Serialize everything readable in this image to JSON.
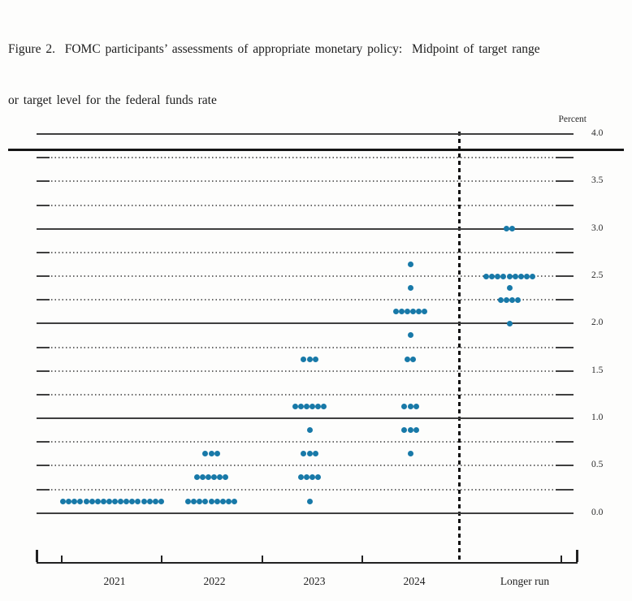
{
  "title": {
    "line1": "Figure 2.  FOMC participants’ assessments of appropriate monetary policy:  Midpoint of target range",
    "line2": "or target level for the federal funds rate"
  },
  "chart_data": {
    "type": "scatter",
    "subtype": "fomc-dot-plot",
    "title": "Figure 2. FOMC participants’ assessments of appropriate monetary policy: Midpoint of target range or target level for the federal funds rate",
    "xlabel": "",
    "ylabel": "Percent",
    "ylim": [
      0.0,
      4.0
    ],
    "grid_interval": 0.25,
    "gridline_style": "solid at integers, dotted at quarter points, short end ticks",
    "legend": "none",
    "yticks": [
      "4.0",
      "3.5",
      "3.0",
      "2.5",
      "2.0",
      "1.5",
      "1.0",
      "0.5",
      "0.0"
    ],
    "categories": [
      "2021",
      "2022",
      "2023",
      "2024",
      "Longer run"
    ],
    "separator": "dashed vertical line between 2024 and Longer run",
    "dot_color": "#1879a8",
    "series": [
      {
        "name": "2021",
        "dots": [
          {
            "rate": 0.125,
            "count": 18
          }
        ]
      },
      {
        "name": "2022",
        "dots": [
          {
            "rate": 0.625,
            "count": 3
          },
          {
            "rate": 0.375,
            "count": 6
          },
          {
            "rate": 0.125,
            "count": 9
          }
        ]
      },
      {
        "name": "2023",
        "dots": [
          {
            "rate": 1.625,
            "count": 3
          },
          {
            "rate": 1.125,
            "count": 6
          },
          {
            "rate": 0.875,
            "count": 1
          },
          {
            "rate": 0.625,
            "count": 3
          },
          {
            "rate": 0.375,
            "count": 4
          },
          {
            "rate": 0.125,
            "count": 1
          }
        ]
      },
      {
        "name": "2024",
        "dots": [
          {
            "rate": 2.625,
            "count": 1
          },
          {
            "rate": 2.375,
            "count": 1
          },
          {
            "rate": 2.125,
            "count": 6
          },
          {
            "rate": 1.875,
            "count": 1
          },
          {
            "rate": 1.625,
            "count": 2
          },
          {
            "rate": 1.125,
            "count": 3
          },
          {
            "rate": 0.875,
            "count": 3
          },
          {
            "rate": 0.625,
            "count": 1
          }
        ]
      },
      {
        "name": "Longer run",
        "dots": [
          {
            "rate": 3.0,
            "count": 2
          },
          {
            "rate": 2.5,
            "count": 9
          },
          {
            "rate": 2.375,
            "count": 1
          },
          {
            "rate": 2.25,
            "count": 4
          },
          {
            "rate": 2.0,
            "count": 1
          }
        ]
      }
    ]
  }
}
